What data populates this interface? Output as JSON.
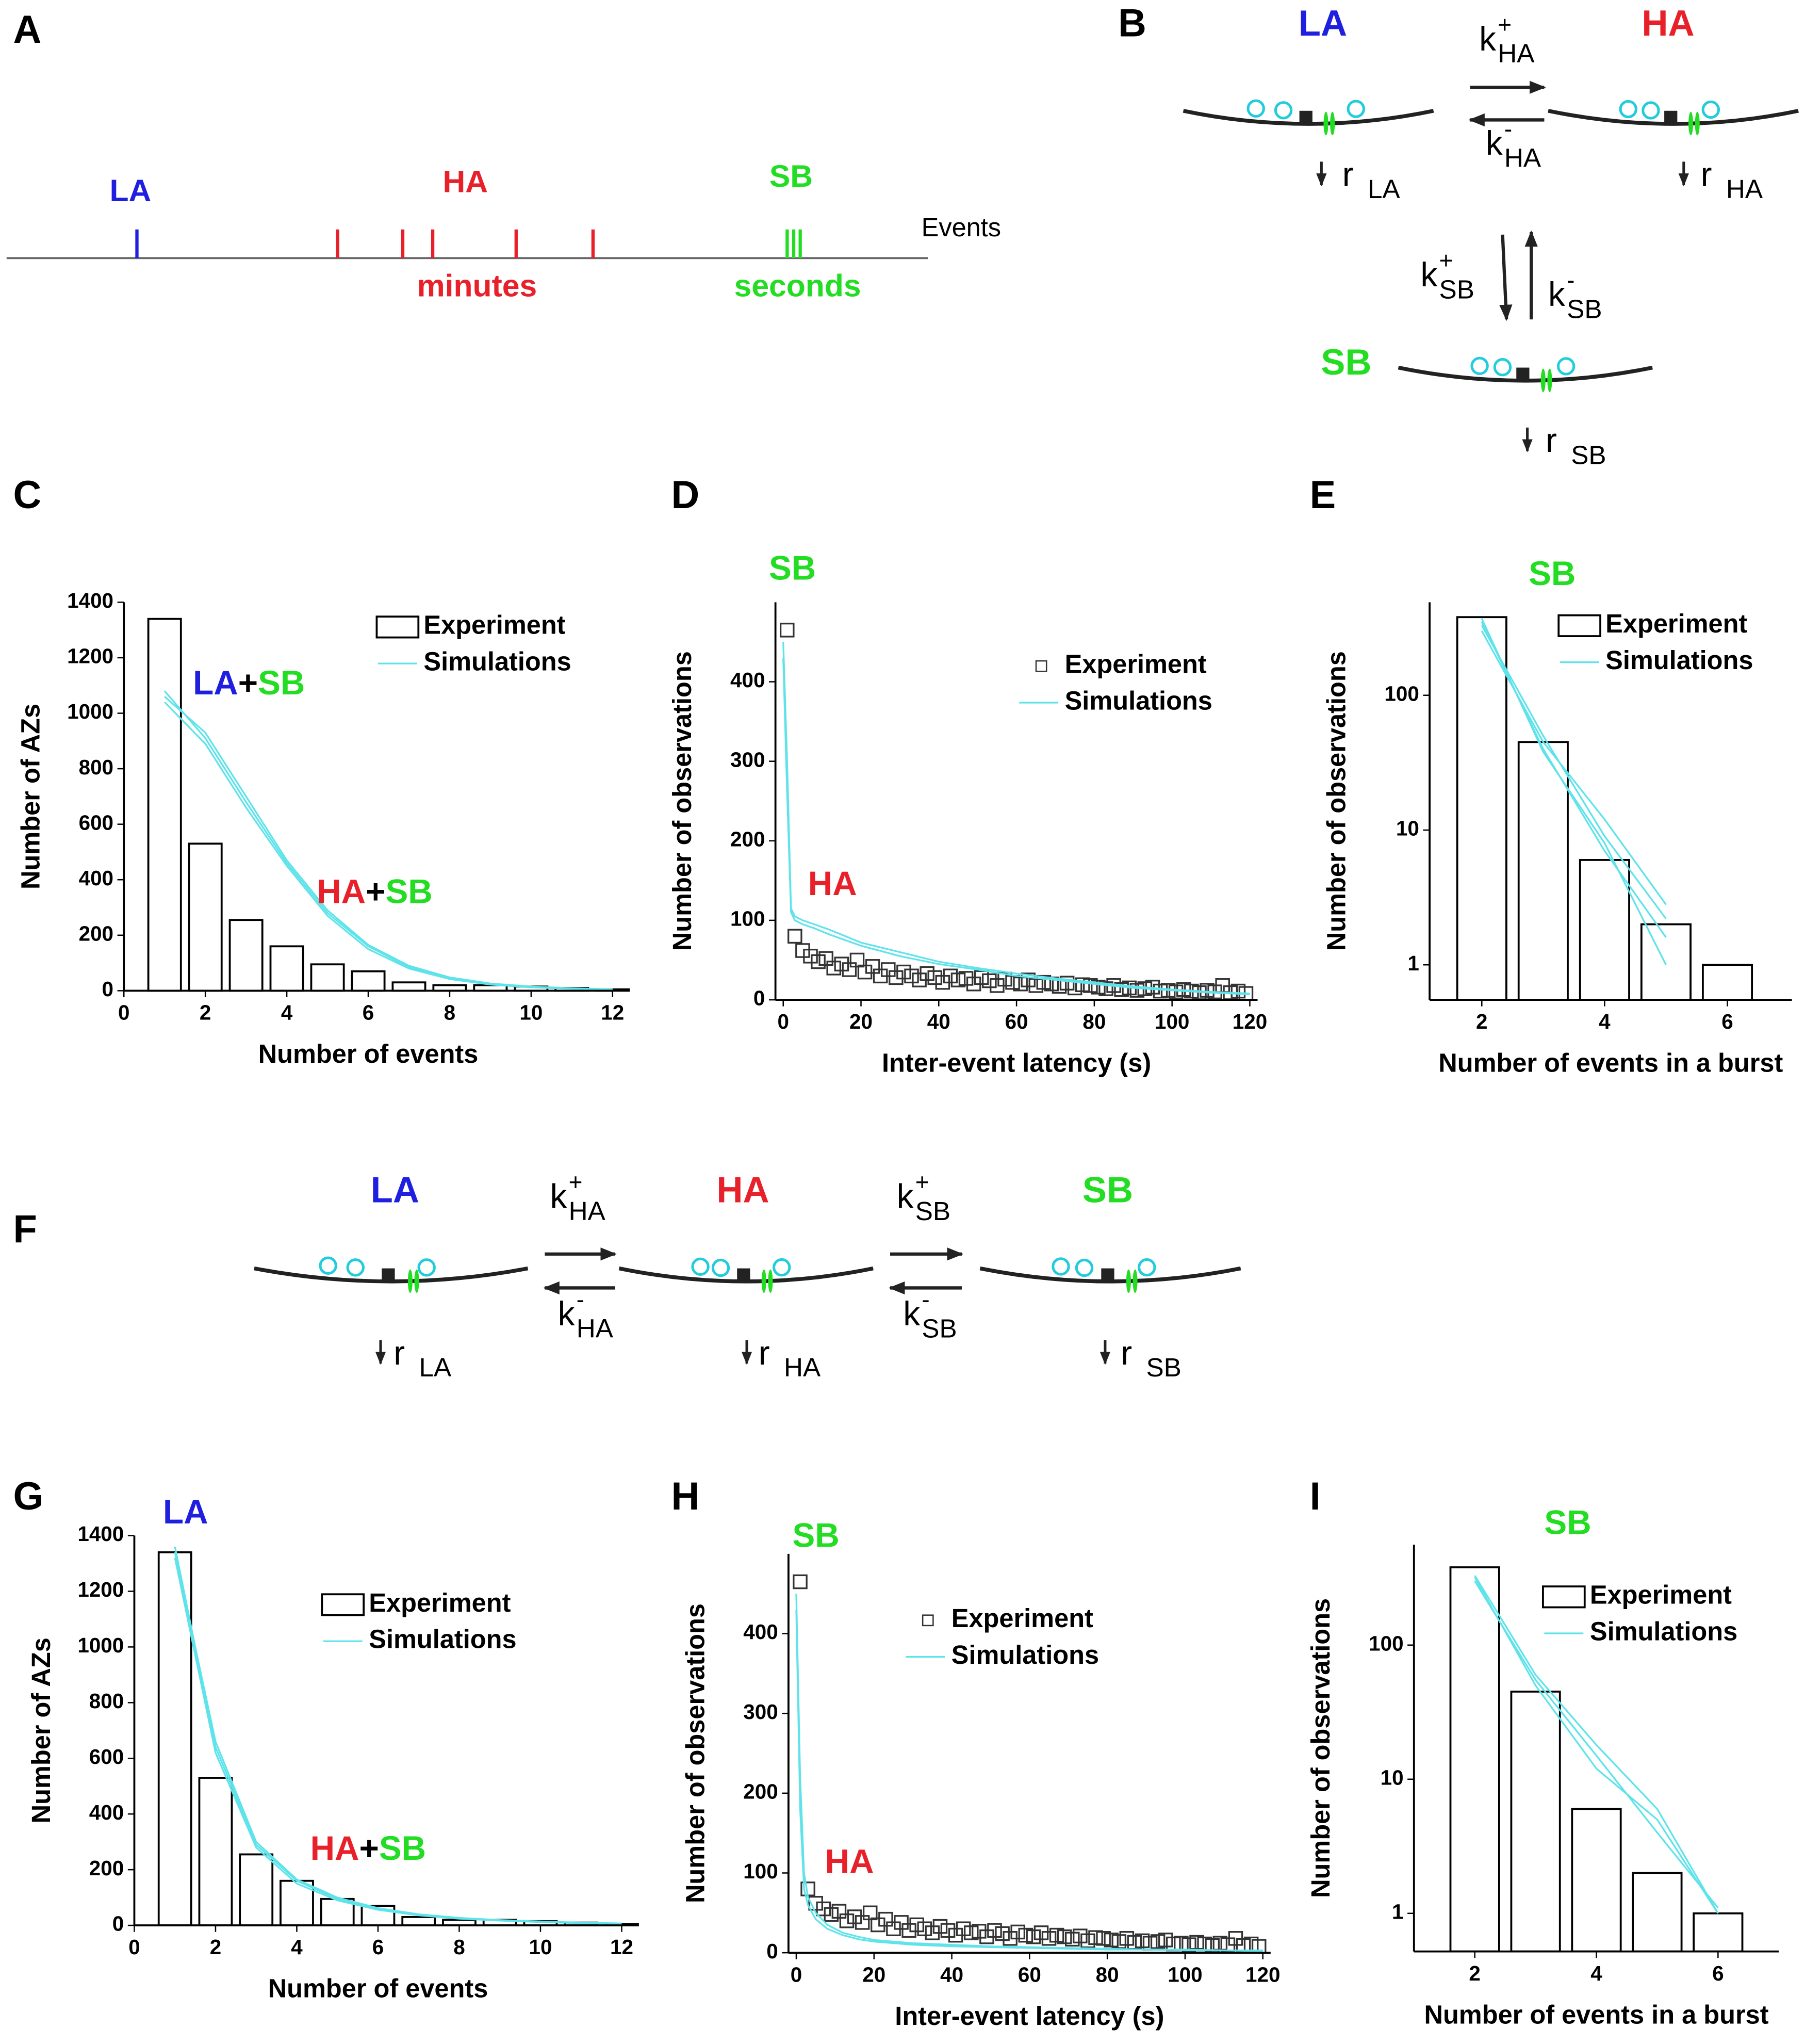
{
  "diagrams": {
    "A": {
      "panel": "A",
      "states": [
        "LA",
        "HA",
        "SB"
      ],
      "axis_label": "Events",
      "timescales": [
        "minutes",
        "seconds"
      ]
    },
    "B": {
      "panel": "B",
      "states": [
        "LA",
        "HA",
        "SB"
      ],
      "rates": [
        {
          "base": "k",
          "sup": "+",
          "sub": "HA"
        },
        {
          "base": "k",
          "sup": "-",
          "sub": "HA"
        },
        {
          "base": "k",
          "sup": "+",
          "sub": "SB"
        },
        {
          "base": "k",
          "sup": "-",
          "sub": "SB"
        }
      ],
      "releases": [
        {
          "base": "r",
          "sub": "LA"
        },
        {
          "base": "r",
          "sub": "HA"
        },
        {
          "base": "r",
          "sub": "SB"
        }
      ]
    },
    "F": {
      "panel": "F",
      "states": [
        "LA",
        "HA",
        "SB"
      ],
      "rates": [
        {
          "base": "k",
          "sup": "+",
          "sub": "HA"
        },
        {
          "base": "k",
          "sup": "-",
          "sub": "HA"
        },
        {
          "base": "k",
          "sup": "+",
          "sub": "SB"
        },
        {
          "base": "k",
          "sup": "-",
          "sub": "SB"
        }
      ],
      "releases": [
        {
          "base": "r",
          "sub": "LA"
        },
        {
          "base": "r",
          "sub": "HA"
        },
        {
          "base": "r",
          "sub": "SB"
        }
      ]
    }
  },
  "chart_data": [
    {
      "panel": "C",
      "type": "bar",
      "xlabel": "Number of events",
      "ylabel": "Number of AZs",
      "xlim": [
        0,
        12
      ],
      "ylim": [
        0,
        1400
      ],
      "xticks": [
        0,
        2,
        4,
        6,
        8,
        10,
        12
      ],
      "yticks": [
        0,
        200,
        400,
        600,
        800,
        1000,
        1200,
        1400
      ],
      "legend": "top-right",
      "series": [
        {
          "name": "Experiment",
          "color": "#000000",
          "x": [
            1,
            2,
            3,
            4,
            5,
            6,
            7,
            8,
            9,
            10,
            11,
            12
          ],
          "values": [
            1340,
            530,
            255,
            160,
            95,
            70,
            30,
            20,
            20,
            15,
            10,
            5
          ]
        },
        {
          "name": "Simulations",
          "color": "#5fe3ea",
          "x": [
            1,
            2,
            3,
            4,
            5,
            6,
            7,
            8,
            9,
            10,
            11,
            12
          ],
          "runs": [
            [
              1080,
              910,
              680,
              460,
              280,
              160,
              85,
              45,
              25,
              14,
              8,
              5
            ],
            [
              1060,
              930,
              700,
              470,
              290,
              165,
              90,
              48,
              26,
              15,
              9,
              5
            ],
            [
              1040,
              890,
              660,
              450,
              270,
              150,
              80,
              42,
              22,
              12,
              7,
              4
            ]
          ]
        }
      ],
      "annotations": [
        [
          {
            "text": "LA",
            "color": "#1f1fe0"
          },
          {
            "text": "+",
            "color": "#000000"
          },
          {
            "text": "SB",
            "color": "#22dd22"
          }
        ],
        [
          {
            "text": "HA",
            "color": "#e8202a"
          },
          {
            "text": "+",
            "color": "#000000"
          },
          {
            "text": "SB",
            "color": "#22dd22"
          }
        ]
      ]
    },
    {
      "panel": "D",
      "type": "scatter",
      "xlabel": "Inter-event latency (s)",
      "ylabel": "Number of observations",
      "xlim": [
        -2,
        122
      ],
      "ylim": [
        0,
        500
      ],
      "xticks": [
        0,
        20,
        40,
        60,
        80,
        100,
        120
      ],
      "yticks": [
        0,
        100,
        200,
        300,
        400
      ],
      "legend": "top-right",
      "series": [
        {
          "name": "Experiment",
          "color": "#333333",
          "x": [
            1,
            3,
            5,
            7,
            9,
            11,
            13,
            15,
            17,
            19,
            21,
            23,
            25,
            27,
            29,
            31,
            33,
            35,
            37,
            39,
            41,
            43,
            45,
            47,
            49,
            51,
            53,
            55,
            57,
            59,
            61,
            63,
            65,
            67,
            69,
            71,
            73,
            75,
            77,
            79,
            81,
            83,
            85,
            87,
            89,
            91,
            93,
            95,
            97,
            99,
            101,
            103,
            105,
            107,
            109,
            111,
            113,
            115,
            117,
            119
          ],
          "values": [
            465,
            80,
            62,
            55,
            48,
            52,
            40,
            45,
            38,
            50,
            35,
            42,
            30,
            38,
            28,
            35,
            30,
            25,
            33,
            28,
            22,
            30,
            25,
            27,
            20,
            28,
            24,
            18,
            26,
            22,
            20,
            25,
            18,
            22,
            20,
            17,
            21,
            15,
            19,
            18,
            16,
            14,
            18,
            13,
            15,
            12,
            14,
            16,
            11,
            12,
            10,
            13,
            11,
            9,
            12,
            10,
            18,
            9,
            11,
            8
          ]
        },
        {
          "name": "Simulations",
          "color": "#5fe3ea",
          "x": [
            0,
            1,
            2,
            3,
            5,
            8,
            12,
            16,
            20,
            30,
            40,
            50,
            60,
            70,
            80,
            90,
            100,
            110,
            120
          ],
          "runs": [
            [
              450,
              300,
              115,
              105,
              100,
              95,
              88,
              80,
              72,
              60,
              48,
              40,
              33,
              27,
              22,
              17,
              13,
              10,
              8
            ],
            [
              430,
              260,
              110,
              100,
              95,
              90,
              82,
              75,
              68,
              55,
              45,
              38,
              30,
              25,
              20,
              15,
              12,
              9,
              7
            ]
          ]
        }
      ],
      "annotations": [
        [
          {
            "text": "SB",
            "color": "#22dd22"
          }
        ],
        [
          {
            "text": "HA",
            "color": "#e8202a"
          }
        ]
      ]
    },
    {
      "panel": "E",
      "type": "bar",
      "log_y": true,
      "xlabel": "Number of events in a burst",
      "ylabel": "Number of observations",
      "xlim": [
        1.15,
        7.05
      ],
      "ylim": [
        0.55,
        490
      ],
      "xticks": [
        2,
        4,
        6
      ],
      "yticks": [
        1,
        10,
        100
      ],
      "legend": "top-right",
      "series": [
        {
          "name": "Experiment",
          "color": "#000000",
          "x": [
            2,
            3,
            4,
            5,
            6
          ],
          "values": [
            380,
            45,
            6,
            2,
            1
          ]
        },
        {
          "name": "Simulations",
          "color": "#5fe3ea",
          "x": [
            2,
            3,
            4,
            5
          ],
          "runs": [
            [
              350,
              40,
              7,
              1.6
            ],
            [
              330,
              50,
              9,
              2.2
            ],
            [
              300,
              45,
              12,
              2.8
            ],
            [
              370,
              38,
              8,
              1
            ]
          ]
        }
      ],
      "annotations": [
        [
          {
            "text": "SB",
            "color": "#22dd22"
          }
        ]
      ]
    },
    {
      "panel": "G",
      "type": "bar",
      "xlabel": "Number of events",
      "ylabel": "Number of AZs",
      "xlim": [
        0,
        12
      ],
      "ylim": [
        0,
        1400
      ],
      "xticks": [
        0,
        2,
        4,
        6,
        8,
        10,
        12
      ],
      "yticks": [
        0,
        200,
        400,
        600,
        800,
        1000,
        1200,
        1400
      ],
      "legend": "top-right",
      "series": [
        {
          "name": "Experiment",
          "color": "#000000",
          "x": [
            1,
            2,
            3,
            4,
            5,
            6,
            7,
            8,
            9,
            10,
            11,
            12
          ],
          "values": [
            1340,
            530,
            255,
            160,
            95,
            70,
            30,
            20,
            20,
            15,
            10,
            5
          ]
        },
        {
          "name": "Simulations",
          "color": "#5fe3ea",
          "x": [
            1,
            2,
            3,
            4,
            5,
            6,
            7,
            8,
            9,
            10,
            11,
            12
          ],
          "runs": [
            [
              1360,
              640,
              290,
              160,
              95,
              60,
              38,
              26,
              18,
              13,
              9,
              6
            ],
            [
              1340,
              660,
              300,
              165,
              100,
              62,
              40,
              27,
              19,
              14,
              10,
              7
            ],
            [
              1320,
              620,
              280,
              150,
              90,
              56,
              36,
              24,
              17,
              12,
              8,
              5
            ]
          ]
        }
      ],
      "annotations": [
        [
          {
            "text": "LA",
            "color": "#1f1fe0"
          }
        ],
        [
          {
            "text": "HA",
            "color": "#e8202a"
          },
          {
            "text": "+",
            "color": "#000000"
          },
          {
            "text": "SB",
            "color": "#22dd22"
          }
        ]
      ]
    },
    {
      "panel": "H",
      "type": "scatter",
      "xlabel": "Inter-event latency (s)",
      "ylabel": "Number of observations",
      "xlim": [
        -2,
        122
      ],
      "ylim": [
        0,
        500
      ],
      "xticks": [
        0,
        20,
        40,
        60,
        80,
        100,
        120
      ],
      "yticks": [
        0,
        100,
        200,
        300,
        400
      ],
      "legend": "top-right",
      "series": [
        {
          "name": "Experiment",
          "color": "#333333",
          "x": [
            1,
            3,
            5,
            7,
            9,
            11,
            13,
            15,
            17,
            19,
            21,
            23,
            25,
            27,
            29,
            31,
            33,
            35,
            37,
            39,
            41,
            43,
            45,
            47,
            49,
            51,
            53,
            55,
            57,
            59,
            61,
            63,
            65,
            67,
            69,
            71,
            73,
            75,
            77,
            79,
            81,
            83,
            85,
            87,
            89,
            91,
            93,
            95,
            97,
            99,
            101,
            103,
            105,
            107,
            109,
            111,
            113,
            115,
            117,
            119
          ],
          "values": [
            465,
            80,
            62,
            55,
            48,
            52,
            40,
            45,
            38,
            50,
            35,
            42,
            30,
            38,
            28,
            35,
            30,
            25,
            33,
            28,
            22,
            30,
            25,
            27,
            20,
            28,
            24,
            18,
            26,
            22,
            20,
            25,
            18,
            22,
            20,
            17,
            21,
            15,
            19,
            18,
            16,
            14,
            18,
            13,
            15,
            12,
            14,
            16,
            11,
            12,
            10,
            13,
            11,
            9,
            12,
            10,
            18,
            9,
            11,
            8
          ]
        },
        {
          "name": "Simulations",
          "color": "#5fe3ea",
          "x": [
            0,
            1,
            2,
            3,
            5,
            8,
            12,
            16,
            20,
            30,
            40,
            50,
            60,
            70,
            80,
            90,
            100,
            110,
            120
          ],
          "runs": [
            [
              450,
              220,
              100,
              70,
              50,
              35,
              25,
              20,
              16,
              12,
              10,
              8,
              7,
              6,
              5,
              4,
              4,
              3,
              3
            ],
            [
              430,
              180,
              80,
              60,
              42,
              30,
              22,
              17,
              14,
              10,
              8,
              7,
              6,
              5,
              4,
              4,
              3,
              3,
              2
            ]
          ]
        }
      ],
      "annotations": [
        [
          {
            "text": "SB",
            "color": "#22dd22"
          }
        ],
        [
          {
            "text": "HA",
            "color": "#e8202a"
          }
        ]
      ]
    },
    {
      "panel": "I",
      "type": "bar",
      "log_y": true,
      "xlabel": "Number of events in a burst",
      "ylabel": "Number of observations",
      "xlim": [
        1,
        7
      ],
      "ylim": [
        0.52,
        560
      ],
      "xticks": [
        2,
        4,
        6
      ],
      "yticks": [
        1,
        10,
        100
      ],
      "legend": "top-right",
      "series": [
        {
          "name": "Experiment",
          "color": "#000000",
          "x": [
            2,
            3,
            4,
            5,
            6
          ],
          "values": [
            380,
            45,
            6,
            2,
            1
          ]
        },
        {
          "name": "Simulations",
          "color": "#5fe3ea",
          "x": [
            2,
            3,
            4,
            5,
            6
          ],
          "runs": [
            [
              330,
              60,
              18,
              6,
              1
            ],
            [
              320,
              50,
              12,
              5,
              1
            ],
            [
              300,
              55,
              15,
              4,
              1.1
            ]
          ]
        }
      ],
      "annotations": [
        [
          {
            "text": "SB",
            "color": "#22dd22"
          }
        ]
      ]
    }
  ]
}
